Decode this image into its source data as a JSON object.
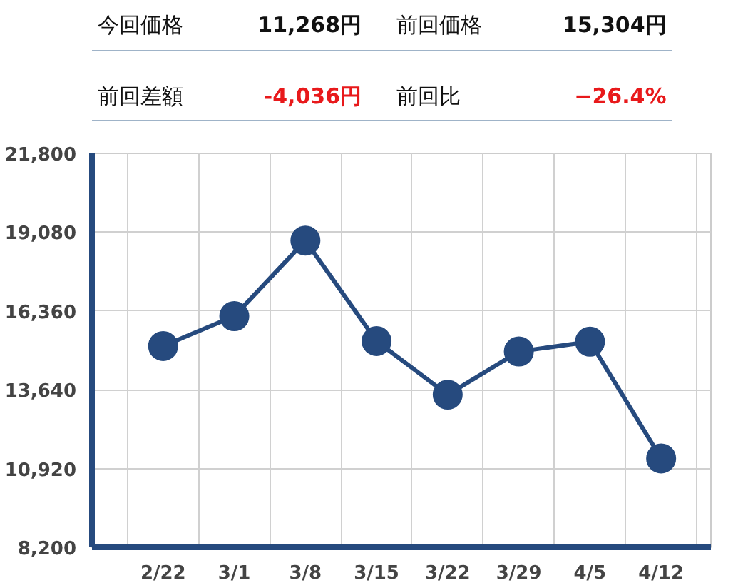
{
  "chart_data": {
    "type": "line",
    "annotations": [
      "今回価格",
      "11,268円",
      "前回価格",
      "15,304円",
      "前回差額",
      "-4,036円",
      "前回比",
      "−26.4%"
    ],
    "categories": [
      "2/22",
      "3/1",
      "3/8",
      "3/15",
      "3/22",
      "3/29",
      "4/5",
      "4/12"
    ],
    "series": [
      {
        "color": "#264a7e",
        "values": [
          15150,
          16180,
          18790,
          15320,
          13470,
          14960,
          15300,
          11270
        ]
      }
    ],
    "ylim": [
      8200,
      21800
    ],
    "yticks": [
      {
        "value": 8200,
        "label": "8,200"
      },
      {
        "value": 10920,
        "label": "10,920"
      },
      {
        "value": 13640,
        "label": "13,640"
      },
      {
        "value": 16360,
        "label": "16,360"
      },
      {
        "value": 19080,
        "label": "19,080"
      },
      {
        "value": 21800,
        "label": "21,800"
      }
    ],
    "grid": true,
    "marker": "circle",
    "line_style": "solid"
  }
}
